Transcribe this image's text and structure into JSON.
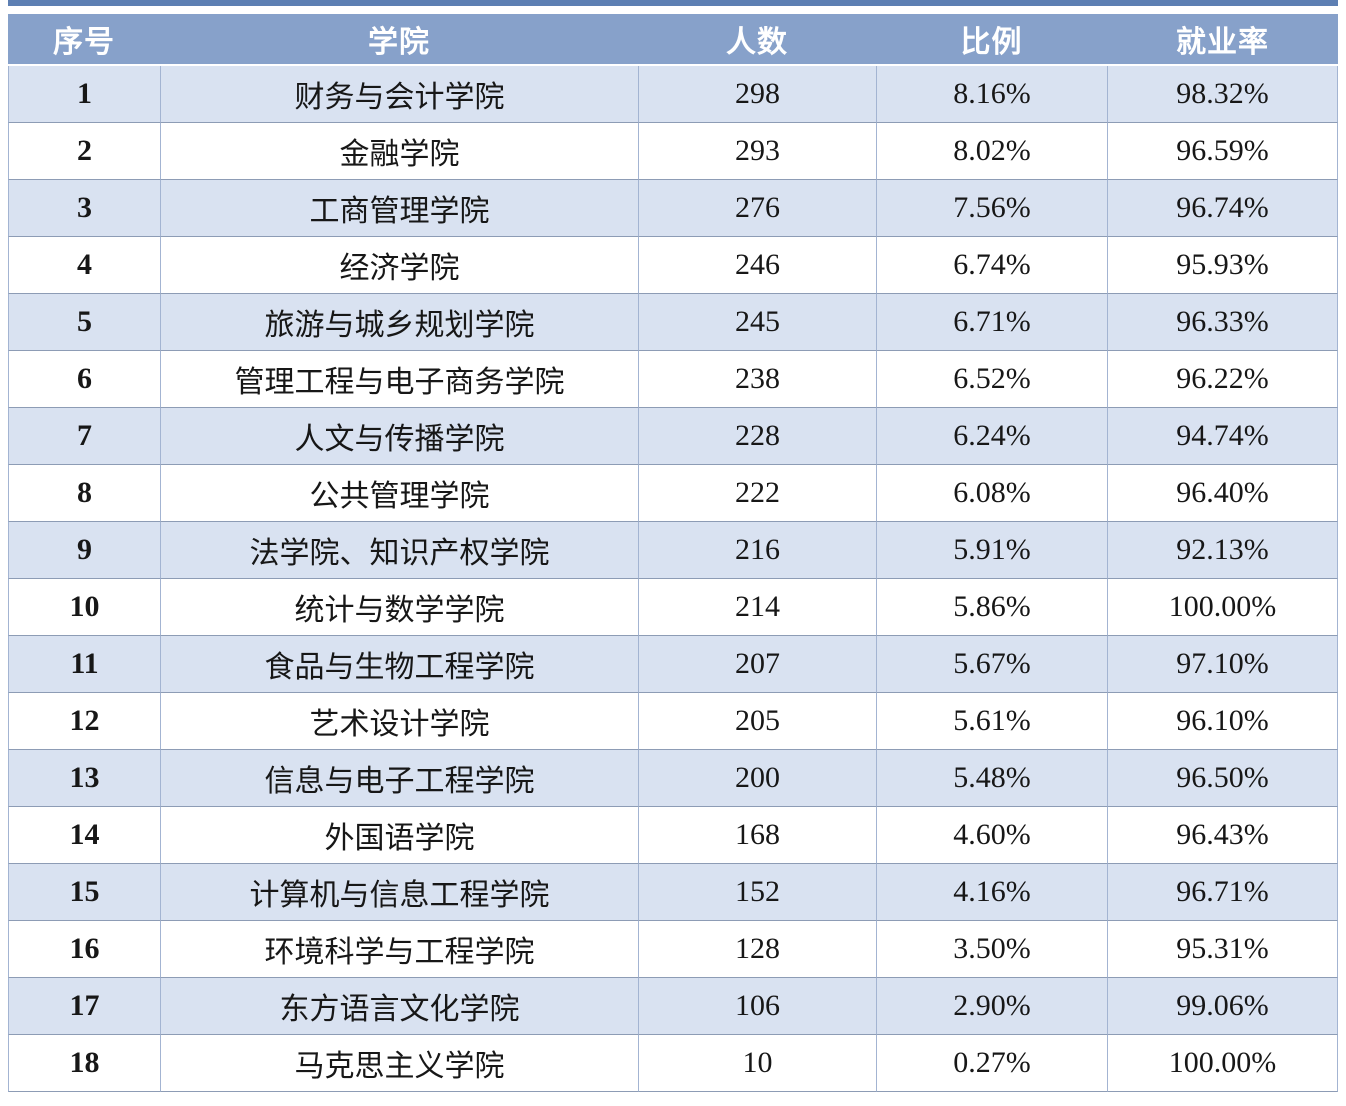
{
  "table": {
    "columns": [
      "序号",
      "学院",
      "人数",
      "比例",
      "就业率"
    ],
    "rows": [
      [
        "1",
        "财务与会计学院",
        "298",
        "8.16%",
        "98.32%"
      ],
      [
        "2",
        "金融学院",
        "293",
        "8.02%",
        "96.59%"
      ],
      [
        "3",
        "工商管理学院",
        "276",
        "7.56%",
        "96.74%"
      ],
      [
        "4",
        "经济学院",
        "246",
        "6.74%",
        "95.93%"
      ],
      [
        "5",
        "旅游与城乡规划学院",
        "245",
        "6.71%",
        "96.33%"
      ],
      [
        "6",
        "管理工程与电子商务学院",
        "238",
        "6.52%",
        "96.22%"
      ],
      [
        "7",
        "人文与传播学院",
        "228",
        "6.24%",
        "94.74%"
      ],
      [
        "8",
        "公共管理学院",
        "222",
        "6.08%",
        "96.40%"
      ],
      [
        "9",
        "法学院、知识产权学院",
        "216",
        "5.91%",
        "92.13%"
      ],
      [
        "10",
        "统计与数学学院",
        "214",
        "5.86%",
        "100.00%"
      ],
      [
        "11",
        "食品与生物工程学院",
        "207",
        "5.67%",
        "97.10%"
      ],
      [
        "12",
        "艺术设计学院",
        "205",
        "5.61%",
        "96.10%"
      ],
      [
        "13",
        "信息与电子工程学院",
        "200",
        "5.48%",
        "96.50%"
      ],
      [
        "14",
        "外国语学院",
        "168",
        "4.60%",
        "96.43%"
      ],
      [
        "15",
        "计算机与信息工程学院",
        "152",
        "4.16%",
        "96.71%"
      ],
      [
        "16",
        "环境科学与工程学院",
        "128",
        "3.50%",
        "95.31%"
      ],
      [
        "17",
        "东方语言文化学院",
        "106",
        "2.90%",
        "99.06%"
      ],
      [
        "18",
        "马克思主义学院",
        "10",
        "0.27%",
        "100.00%"
      ]
    ],
    "colors": {
      "top_strip": "#5d7fb3",
      "header_bg": "#87a1ca",
      "header_text": "#ffffff",
      "band_row_bg": "#d9e2f1",
      "white_row_bg": "#ffffff",
      "horizontal_border": "#8d9cb5",
      "vertical_border": "#a3b4d2",
      "body_text": "#171717"
    }
  }
}
